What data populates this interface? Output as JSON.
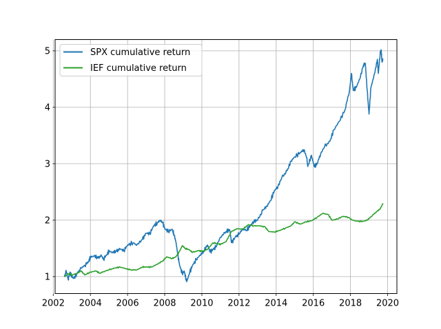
{
  "chart_data": {
    "type": "line",
    "title": "",
    "xlabel": "",
    "ylabel": "",
    "xlim": [
      2002.1,
      2020.5
    ],
    "ylim": [
      0.7,
      5.2
    ],
    "xticks": [
      2002,
      2004,
      2006,
      2008,
      2010,
      2012,
      2014,
      2016,
      2018,
      2020
    ],
    "xtick_labels": [
      "2002",
      "2004",
      "2006",
      "2008",
      "2010",
      "2012",
      "2014",
      "2016",
      "2018",
      "2020"
    ],
    "yticks": [
      1,
      2,
      3,
      4,
      5
    ],
    "ytick_labels": [
      "1",
      "2",
      "3",
      "4",
      "5"
    ],
    "grid": true,
    "legend_position": "upper-left",
    "series": [
      {
        "name": "SPX cumulative return",
        "color": "#1f77b4",
        "points": [
          [
            2002.6,
            1.0
          ],
          [
            2002.7,
            1.1
          ],
          [
            2002.8,
            0.95
          ],
          [
            2002.9,
            1.08
          ],
          [
            2003.0,
            1.0
          ],
          [
            2003.1,
            0.97
          ],
          [
            2003.3,
            1.06
          ],
          [
            2003.5,
            1.15
          ],
          [
            2003.7,
            1.2
          ],
          [
            2003.9,
            1.27
          ],
          [
            2004.0,
            1.34
          ],
          [
            2004.2,
            1.37
          ],
          [
            2004.4,
            1.33
          ],
          [
            2004.6,
            1.37
          ],
          [
            2004.7,
            1.31
          ],
          [
            2004.9,
            1.4
          ],
          [
            2005.0,
            1.45
          ],
          [
            2005.2,
            1.43
          ],
          [
            2005.4,
            1.45
          ],
          [
            2005.6,
            1.49
          ],
          [
            2005.8,
            1.46
          ],
          [
            2006.0,
            1.56
          ],
          [
            2006.3,
            1.6
          ],
          [
            2006.5,
            1.56
          ],
          [
            2006.8,
            1.66
          ],
          [
            2007.0,
            1.77
          ],
          [
            2007.2,
            1.76
          ],
          [
            2007.4,
            1.9
          ],
          [
            2007.6,
            1.95
          ],
          [
            2007.75,
            2.0
          ],
          [
            2007.9,
            1.95
          ],
          [
            2008.0,
            1.85
          ],
          [
            2008.2,
            1.8
          ],
          [
            2008.4,
            1.84
          ],
          [
            2008.5,
            1.75
          ],
          [
            2008.6,
            1.62
          ],
          [
            2008.7,
            1.4
          ],
          [
            2008.8,
            1.2
          ],
          [
            2008.95,
            1.05
          ],
          [
            2009.05,
            1.1
          ],
          [
            2009.15,
            0.95
          ],
          [
            2009.2,
            0.92
          ],
          [
            2009.35,
            1.08
          ],
          [
            2009.5,
            1.2
          ],
          [
            2009.7,
            1.3
          ],
          [
            2009.9,
            1.38
          ],
          [
            2010.1,
            1.45
          ],
          [
            2010.3,
            1.56
          ],
          [
            2010.45,
            1.44
          ],
          [
            2010.6,
            1.48
          ],
          [
            2010.75,
            1.52
          ],
          [
            2011.0,
            1.7
          ],
          [
            2011.3,
            1.8
          ],
          [
            2011.5,
            1.83
          ],
          [
            2011.6,
            1.6
          ],
          [
            2011.8,
            1.7
          ],
          [
            2012.0,
            1.75
          ],
          [
            2012.2,
            1.85
          ],
          [
            2012.4,
            1.82
          ],
          [
            2012.6,
            1.9
          ],
          [
            2012.8,
            1.98
          ],
          [
            2013.0,
            2.0
          ],
          [
            2013.3,
            2.18
          ],
          [
            2013.5,
            2.25
          ],
          [
            2013.7,
            2.35
          ],
          [
            2013.9,
            2.52
          ],
          [
            2014.1,
            2.6
          ],
          [
            2014.3,
            2.75
          ],
          [
            2014.6,
            2.88
          ],
          [
            2014.8,
            3.05
          ],
          [
            2015.0,
            3.12
          ],
          [
            2015.3,
            3.2
          ],
          [
            2015.5,
            3.25
          ],
          [
            2015.65,
            3.1
          ],
          [
            2015.7,
            2.95
          ],
          [
            2015.9,
            3.15
          ],
          [
            2016.05,
            2.95
          ],
          [
            2016.2,
            3.0
          ],
          [
            2016.4,
            3.18
          ],
          [
            2016.6,
            3.3
          ],
          [
            2016.9,
            3.4
          ],
          [
            2017.1,
            3.6
          ],
          [
            2017.4,
            3.75
          ],
          [
            2017.7,
            3.95
          ],
          [
            2017.95,
            4.3
          ],
          [
            2018.05,
            4.6
          ],
          [
            2018.15,
            4.3
          ],
          [
            2018.3,
            4.35
          ],
          [
            2018.5,
            4.5
          ],
          [
            2018.7,
            4.75
          ],
          [
            2018.8,
            4.78
          ],
          [
            2018.9,
            4.3
          ],
          [
            2019.0,
            3.88
          ],
          [
            2019.1,
            4.35
          ],
          [
            2019.3,
            4.6
          ],
          [
            2019.45,
            4.85
          ],
          [
            2019.5,
            4.6
          ],
          [
            2019.6,
            4.95
          ],
          [
            2019.65,
            5.02
          ],
          [
            2019.7,
            4.8
          ],
          [
            2019.75,
            4.85
          ]
        ]
      },
      {
        "name": "IEF cumulative return",
        "color": "#2ca02c",
        "points": [
          [
            2002.6,
            1.0
          ],
          [
            2002.8,
            1.05
          ],
          [
            2003.0,
            1.03
          ],
          [
            2003.3,
            1.06
          ],
          [
            2003.5,
            1.1
          ],
          [
            2003.7,
            1.03
          ],
          [
            2004.0,
            1.08
          ],
          [
            2004.3,
            1.1
          ],
          [
            2004.5,
            1.06
          ],
          [
            2004.8,
            1.1
          ],
          [
            2005.0,
            1.12
          ],
          [
            2005.3,
            1.15
          ],
          [
            2005.6,
            1.17
          ],
          [
            2005.9,
            1.14
          ],
          [
            2006.2,
            1.12
          ],
          [
            2006.5,
            1.12
          ],
          [
            2006.8,
            1.17
          ],
          [
            2007.0,
            1.17
          ],
          [
            2007.3,
            1.17
          ],
          [
            2007.6,
            1.22
          ],
          [
            2007.9,
            1.28
          ],
          [
            2008.1,
            1.35
          ],
          [
            2008.4,
            1.32
          ],
          [
            2008.6,
            1.35
          ],
          [
            2008.8,
            1.45
          ],
          [
            2008.95,
            1.55
          ],
          [
            2009.1,
            1.5
          ],
          [
            2009.3,
            1.48
          ],
          [
            2009.5,
            1.43
          ],
          [
            2009.8,
            1.46
          ],
          [
            2010.0,
            1.45
          ],
          [
            2010.3,
            1.48
          ],
          [
            2010.6,
            1.6
          ],
          [
            2010.9,
            1.58
          ],
          [
            2011.0,
            1.57
          ],
          [
            2011.3,
            1.62
          ],
          [
            2011.6,
            1.8
          ],
          [
            2011.9,
            1.85
          ],
          [
            2012.2,
            1.84
          ],
          [
            2012.5,
            1.92
          ],
          [
            2012.8,
            1.9
          ],
          [
            2013.1,
            1.9
          ],
          [
            2013.4,
            1.88
          ],
          [
            2013.6,
            1.8
          ],
          [
            2013.9,
            1.79
          ],
          [
            2014.2,
            1.82
          ],
          [
            2014.5,
            1.86
          ],
          [
            2014.8,
            1.9
          ],
          [
            2015.0,
            1.97
          ],
          [
            2015.3,
            1.93
          ],
          [
            2015.6,
            1.97
          ],
          [
            2015.9,
            1.99
          ],
          [
            2016.2,
            2.05
          ],
          [
            2016.5,
            2.12
          ],
          [
            2016.8,
            2.1
          ],
          [
            2017.0,
            2.0
          ],
          [
            2017.3,
            2.02
          ],
          [
            2017.6,
            2.07
          ],
          [
            2017.9,
            2.05
          ],
          [
            2018.1,
            2.0
          ],
          [
            2018.4,
            1.98
          ],
          [
            2018.7,
            1.98
          ],
          [
            2018.9,
            2.0
          ],
          [
            2019.1,
            2.06
          ],
          [
            2019.4,
            2.15
          ],
          [
            2019.6,
            2.2
          ],
          [
            2019.75,
            2.3
          ]
        ]
      }
    ]
  }
}
